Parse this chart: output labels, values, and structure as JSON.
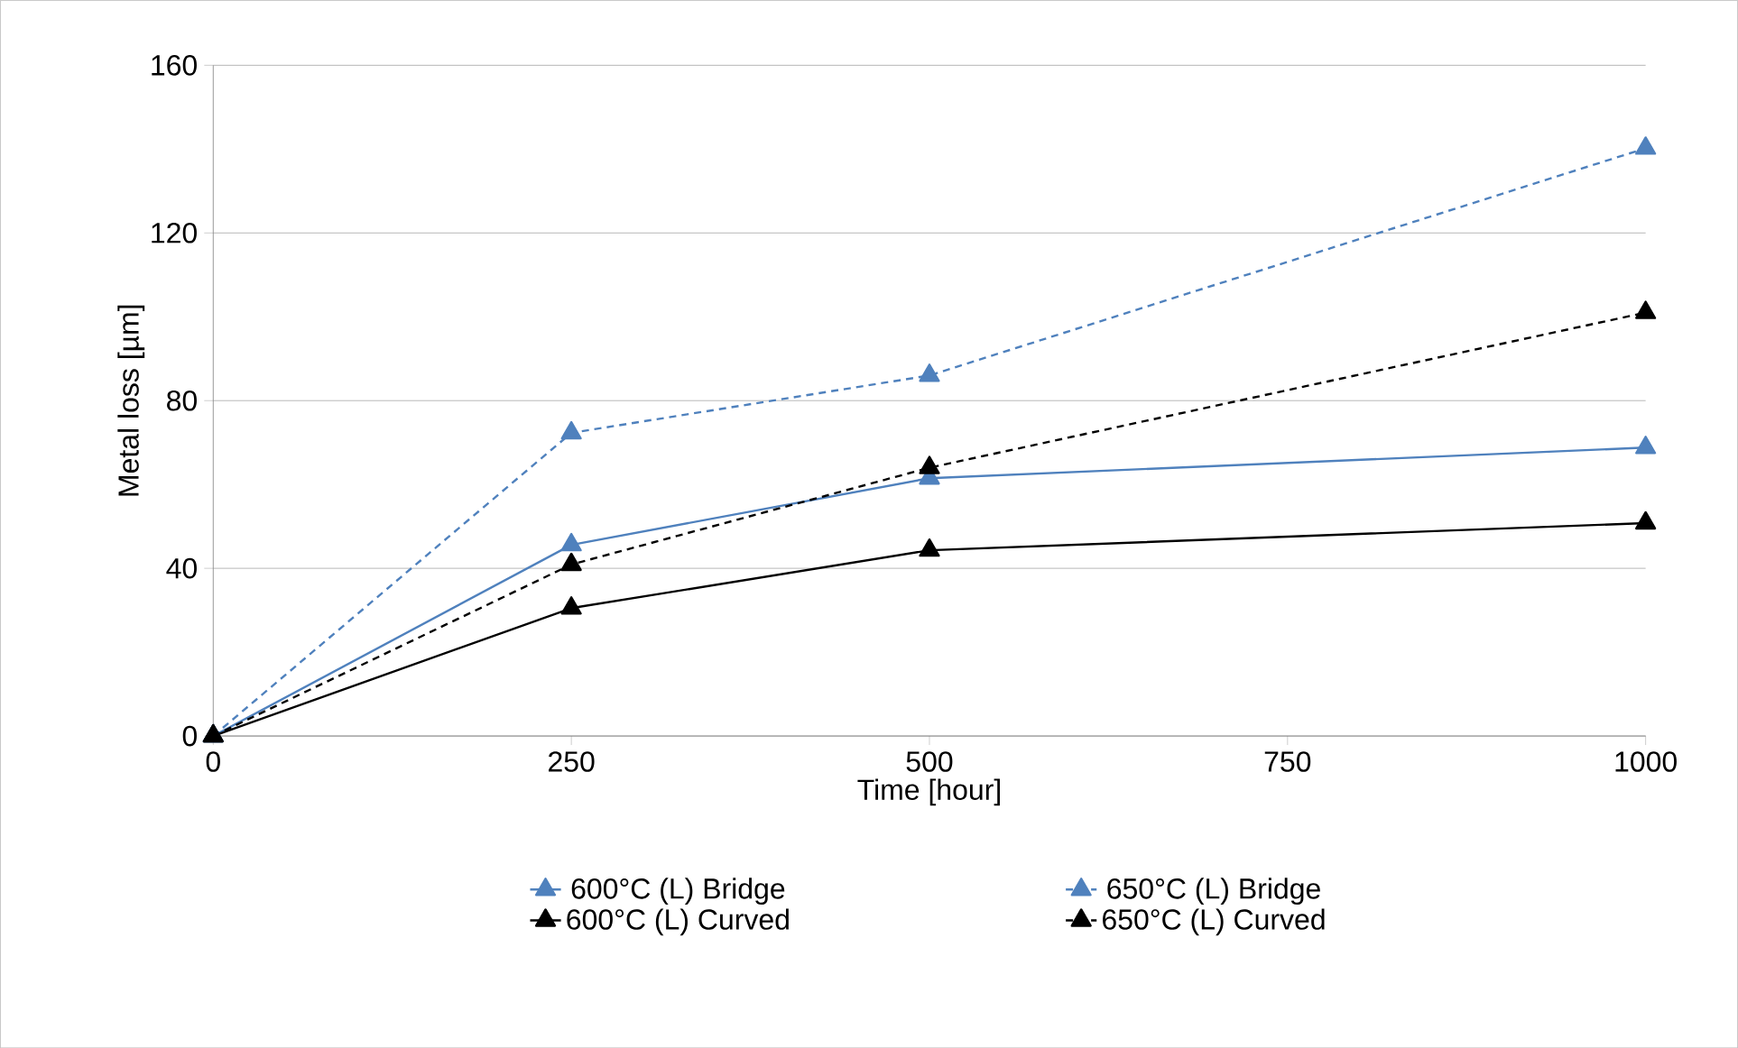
{
  "chart_data": {
    "type": "line",
    "xlabel": "Time [hour]",
    "ylabel": "Metal loss [µm]",
    "x": [
      0,
      250,
      500,
      1000
    ],
    "xlim": [
      0,
      1000
    ],
    "xticks": [
      0,
      250,
      500,
      750,
      1000
    ],
    "ylim": [
      0,
      160
    ],
    "yticks": [
      0,
      40,
      80,
      120,
      160
    ],
    "grid": "y",
    "legend": "bottom",
    "marker": "triangle",
    "series": [
      {
        "name": "600°C (L) Bridge",
        "color": "#4f81bd",
        "line_style": "solid",
        "values": [
          0,
          45.6,
          61.5,
          68.8
        ]
      },
      {
        "name": "650°C (L) Bridge",
        "color": "#4f81bd",
        "line_style": "dashed",
        "values": [
          0,
          72.3,
          86,
          140.2
        ]
      },
      {
        "name": "600°C (L) Curved",
        "color": "#000000",
        "line_style": "solid",
        "values": [
          0,
          30.5,
          44.3,
          50.8
        ]
      },
      {
        "name": "650°C (L) Curved",
        "color": "#000000",
        "line_style": "dashed",
        "values": [
          0,
          40.9,
          64,
          101
        ]
      }
    ]
  }
}
